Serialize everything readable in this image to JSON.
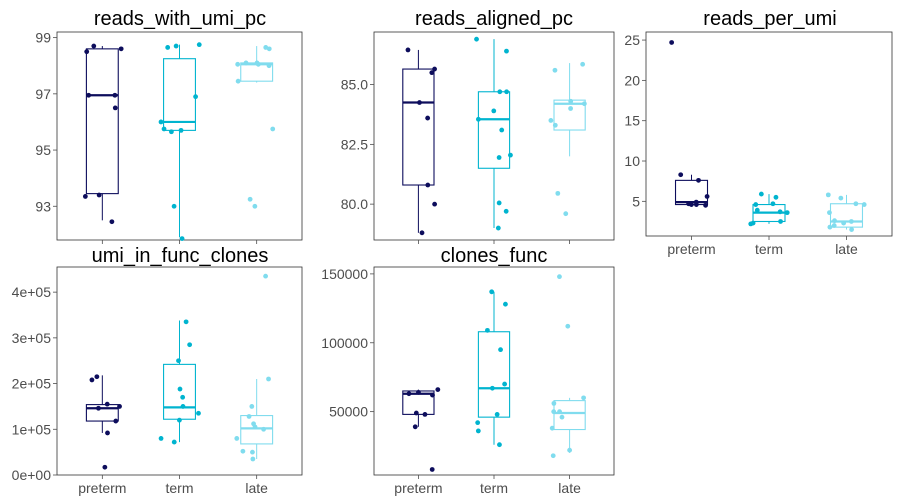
{
  "figure": {
    "colors": {
      "preterm": "#0d0d5c",
      "term": "#00b4cf",
      "late": "#80dcee",
      "axis": "#4d4d4d",
      "frame": "#333333"
    }
  },
  "chart_data": [
    {
      "type": "box",
      "title": "reads_with_umi_pc",
      "xlabel": "",
      "ylabel": "",
      "categories": [
        "preterm",
        "term",
        "late"
      ],
      "show_x_labels": false,
      "ylim": [
        91.8,
        99.2
      ],
      "yticks": [
        93,
        95,
        97,
        99
      ],
      "ytick_labels": [
        "93",
        "95",
        "97",
        "99"
      ],
      "boxes": [
        {
          "category": "preterm",
          "whisker_low": 92.5,
          "q1": 93.45,
          "median": 96.95,
          "q3": 98.6,
          "whisker_high": 98.7
        },
        {
          "category": "term",
          "whisker_low": 91.9,
          "q1": 95.7,
          "median": 96.0,
          "q3": 98.25,
          "whisker_high": 98.75
        },
        {
          "category": "late",
          "whisker_low": 97.4,
          "q1": 97.45,
          "median": 98.05,
          "q3": 98.1,
          "whisker_high": 98.7
        }
      ],
      "points": [
        {
          "category": "preterm",
          "values": [
            92.45,
            93.35,
            93.4,
            96.5,
            96.95,
            96.95,
            98.5,
            98.6,
            98.7
          ]
        },
        {
          "category": "term",
          "values": [
            91.85,
            93.0,
            95.65,
            95.7,
            95.75,
            96.0,
            96.9,
            98.65,
            98.7,
            98.75
          ]
        },
        {
          "category": "late",
          "values": [
            93.0,
            93.25,
            95.75,
            97.45,
            98.0,
            98.05,
            98.05,
            98.1,
            98.1,
            98.6,
            98.65
          ]
        }
      ]
    },
    {
      "type": "box",
      "title": "reads_aligned_pc",
      "xlabel": "",
      "ylabel": "",
      "categories": [
        "preterm",
        "term",
        "late"
      ],
      "show_x_labels": false,
      "ylim": [
        78.5,
        87.2
      ],
      "yticks": [
        80.0,
        82.5,
        85.0
      ],
      "ytick_labels": [
        "80.0",
        "82.5",
        "85.0"
      ],
      "boxes": [
        {
          "category": "preterm",
          "whisker_low": 78.8,
          "q1": 80.8,
          "median": 84.25,
          "q3": 85.65,
          "whisker_high": 86.45
        },
        {
          "category": "term",
          "whisker_low": 79.0,
          "q1": 81.5,
          "median": 83.55,
          "q3": 84.7,
          "whisker_high": 86.9
        },
        {
          "category": "late",
          "whisker_low": 82.0,
          "q1": 83.1,
          "median": 84.2,
          "q3": 84.35,
          "whisker_high": 85.9
        }
      ],
      "points": [
        {
          "category": "preterm",
          "values": [
            78.8,
            80.0,
            80.8,
            83.6,
            84.25,
            85.5,
            85.65,
            86.45
          ]
        },
        {
          "category": "term",
          "values": [
            79.0,
            79.7,
            80.05,
            81.95,
            82.05,
            83.1,
            83.55,
            83.9,
            84.7,
            84.7,
            86.4,
            86.9
          ]
        },
        {
          "category": "late",
          "values": [
            79.6,
            80.45,
            83.3,
            83.5,
            84.0,
            84.2,
            84.3,
            85.6,
            85.85
          ]
        }
      ]
    },
    {
      "type": "box",
      "title": "reads_per_umi",
      "xlabel": "",
      "ylabel": "",
      "categories": [
        "preterm",
        "term",
        "late"
      ],
      "show_x_labels": true,
      "ylim": [
        0.7,
        26.0
      ],
      "yticks": [
        5,
        10,
        15,
        20,
        25
      ],
      "ytick_labels": [
        "5",
        "10",
        "15",
        "20",
        "25"
      ],
      "boxes": [
        {
          "category": "preterm",
          "whisker_low": 4.6,
          "q1": 4.6,
          "median": 4.9,
          "q3": 7.6,
          "whisker_high": 8.3
        },
        {
          "category": "term",
          "whisker_low": 2.2,
          "q1": 2.5,
          "median": 3.6,
          "q3": 4.6,
          "whisker_high": 5.9
        },
        {
          "category": "late",
          "whisker_low": 1.5,
          "q1": 1.8,
          "median": 2.5,
          "q3": 4.7,
          "whisker_high": 5.8
        }
      ],
      "points": [
        {
          "category": "preterm",
          "values": [
            4.5,
            4.6,
            4.6,
            4.7,
            4.9,
            5.6,
            7.6,
            8.3,
            24.7
          ]
        },
        {
          "category": "term",
          "values": [
            2.2,
            2.3,
            2.5,
            3.6,
            3.7,
            3.9,
            4.6,
            4.7,
            5.5,
            5.9
          ]
        },
        {
          "category": "late",
          "values": [
            1.5,
            1.8,
            2.0,
            2.3,
            2.5,
            2.6,
            3.6,
            4.6,
            4.7,
            5.4,
            5.8
          ]
        }
      ]
    },
    {
      "type": "box",
      "title": "umi_in_func_clones",
      "xlabel": "",
      "ylabel": "",
      "categories": [
        "preterm",
        "term",
        "late"
      ],
      "show_x_labels": true,
      "ylim": [
        0,
        455000
      ],
      "yticks": [
        0,
        100000,
        200000,
        300000,
        400000
      ],
      "ytick_labels": [
        "0e+00",
        "1e+05",
        "2e+05",
        "3e+05",
        "4e+05"
      ],
      "boxes": [
        {
          "category": "preterm",
          "whisker_low": 92000,
          "q1": 118000,
          "median": 146000,
          "q3": 154000,
          "whisker_high": 218000
        },
        {
          "category": "term",
          "whisker_low": 72000,
          "q1": 122000,
          "median": 148000,
          "q3": 242000,
          "whisker_high": 338000
        },
        {
          "category": "late",
          "whisker_low": 35000,
          "q1": 68000,
          "median": 102000,
          "q3": 130000,
          "whisker_high": 210000
        }
      ],
      "points": [
        {
          "category": "preterm",
          "values": [
            17000,
            92000,
            118000,
            146000,
            150000,
            155000,
            208000,
            215000
          ]
        },
        {
          "category": "term",
          "values": [
            72000,
            80000,
            120000,
            135000,
            150000,
            170000,
            188000,
            250000,
            285000,
            335000
          ]
        },
        {
          "category": "late",
          "values": [
            35000,
            50000,
            52000,
            80000,
            100000,
            105000,
            112000,
            128000,
            150000,
            210000,
            435000
          ]
        }
      ]
    },
    {
      "type": "box",
      "title": "clones_func",
      "xlabel": "",
      "ylabel": "",
      "categories": [
        "preterm",
        "term",
        "late"
      ],
      "show_x_labels": true,
      "ylim": [
        4000,
        155000
      ],
      "yticks": [
        50000,
        100000,
        150000
      ],
      "ytick_labels": [
        "50000",
        "100000",
        "150000"
      ],
      "boxes": [
        {
          "category": "preterm",
          "whisker_low": 39000,
          "q1": 48000,
          "median": 63000,
          "q3": 65000,
          "whisker_high": 66000
        },
        {
          "category": "term",
          "whisker_low": 26000,
          "q1": 46000,
          "median": 67000,
          "q3": 108000,
          "whisker_high": 137000
        },
        {
          "category": "late",
          "whisker_low": 20000,
          "q1": 37000,
          "median": 49000,
          "q3": 58000,
          "whisker_high": 60000
        }
      ],
      "points": [
        {
          "category": "preterm",
          "values": [
            8000,
            39000,
            48000,
            49000,
            62000,
            63000,
            64000,
            66000
          ]
        },
        {
          "category": "term",
          "values": [
            26000,
            36000,
            42000,
            48000,
            67000,
            70000,
            95000,
            109000,
            128000,
            137000
          ]
        },
        {
          "category": "late",
          "values": [
            18000,
            22000,
            38000,
            46000,
            50000,
            50000,
            56000,
            60000,
            112000,
            148000
          ]
        }
      ]
    }
  ]
}
